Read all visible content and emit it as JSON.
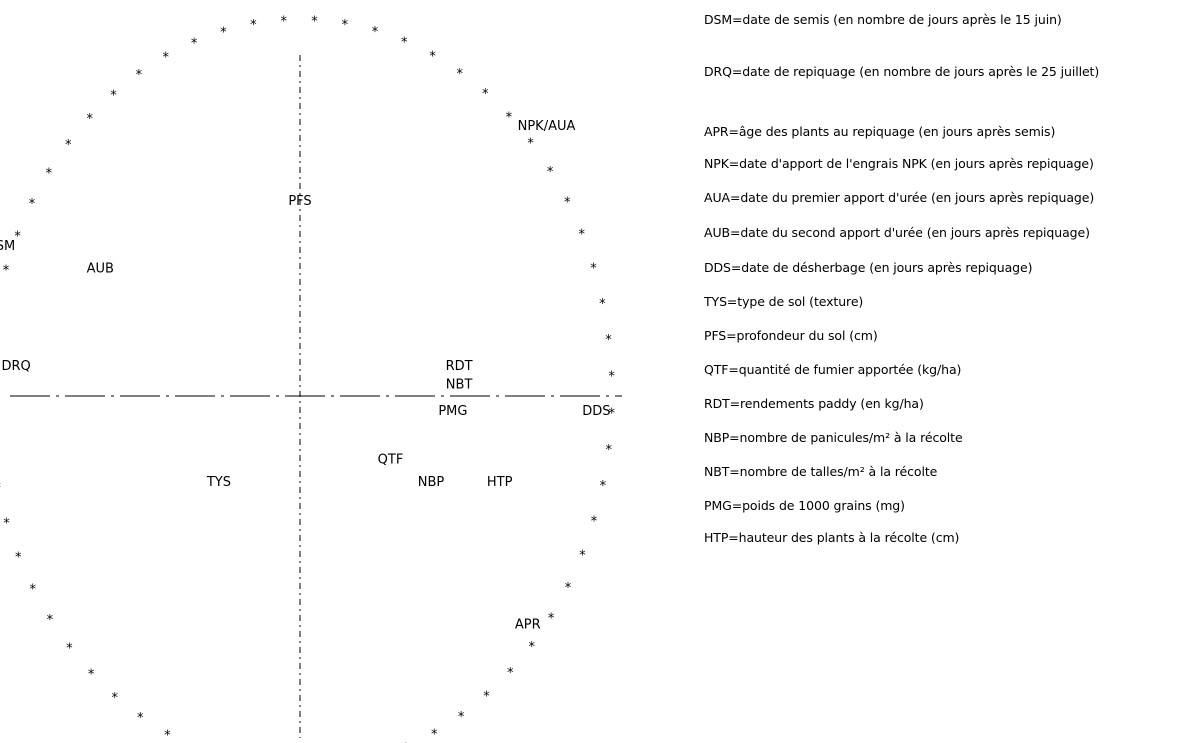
{
  "chart_data": {
    "type": "scatter",
    "title": "",
    "xlabel": "",
    "ylabel": "",
    "xlim": [
      -1,
      1
    ],
    "ylim": [
      -1,
      1
    ],
    "grid": false,
    "axes": "dashed lines through origin",
    "circle": "correlation circle drawn with asterisks",
    "points": [
      {
        "label": "DSM",
        "x": -0.96,
        "y": 0.39
      },
      {
        "label": "AUB",
        "x": -0.64,
        "y": 0.33
      },
      {
        "label": "DRQ",
        "x": -0.91,
        "y": 0.07
      },
      {
        "label": "PFS",
        "x": 0.0,
        "y": 0.51
      },
      {
        "label": "NPK/AUA",
        "x": 0.79,
        "y": 0.71
      },
      {
        "label": "RDT",
        "x": 0.51,
        "y": 0.07
      },
      {
        "label": "NBT",
        "x": 0.51,
        "y": 0.02
      },
      {
        "label": "PMG",
        "x": 0.49,
        "y": -0.05
      },
      {
        "label": "DDS",
        "x": 0.95,
        "y": -0.05
      },
      {
        "label": "QTF",
        "x": 0.29,
        "y": -0.18
      },
      {
        "label": "NBP",
        "x": 0.42,
        "y": -0.24
      },
      {
        "label": "HTP",
        "x": 0.64,
        "y": -0.24
      },
      {
        "label": "TYS",
        "x": -0.26,
        "y": -0.24
      },
      {
        "label": "APR",
        "x": 0.73,
        "y": -0.62
      }
    ]
  },
  "legend": [
    {
      "code": "DSM",
      "text": "DSM=date de semis (en nombre de jours après le 15 juin)"
    },
    {
      "code": "DRQ",
      "text": "DRQ=date de repiquage (en nombre de jours après le 25 juillet)"
    },
    {
      "code": "APR",
      "text": "APR=âge des plants au repiquage (en jours après semis)"
    },
    {
      "code": "NPK",
      "text": "NPK=date d'apport de l'engrais NPK (en jours après repiquage)"
    },
    {
      "code": "AUA",
      "text": "AUA=date du premier apport d'urée (en jours après repiquage)"
    },
    {
      "code": "AUB",
      "text": "AUB=date du second apport d'urée (en jours après repiquage)"
    },
    {
      "code": "DDS",
      "text": "DDS=date de désherbage (en jours après repiquage)"
    },
    {
      "code": "TYS",
      "text": "TYS=type de sol (texture)"
    },
    {
      "code": "PFS",
      "text": "PFS=profondeur du sol (cm)"
    },
    {
      "code": "QTF",
      "text": "QTF=quantité de fumier apportée (kg/ha)"
    },
    {
      "code": "RDT",
      "text": "RDT=rendements paddy (en kg/ha)"
    },
    {
      "code": "NBP",
      "text": "NBP=nombre de panicules/m² à la récolte"
    },
    {
      "code": "NBT",
      "text": "NBT=nombre de talles/m² à la récolte"
    },
    {
      "code": "PMG",
      "text": "PMG=poids de 1000 grains (mg)"
    },
    {
      "code": "HTP",
      "text": "HTP=hauteur des plants à la récolte (cm)"
    }
  ]
}
